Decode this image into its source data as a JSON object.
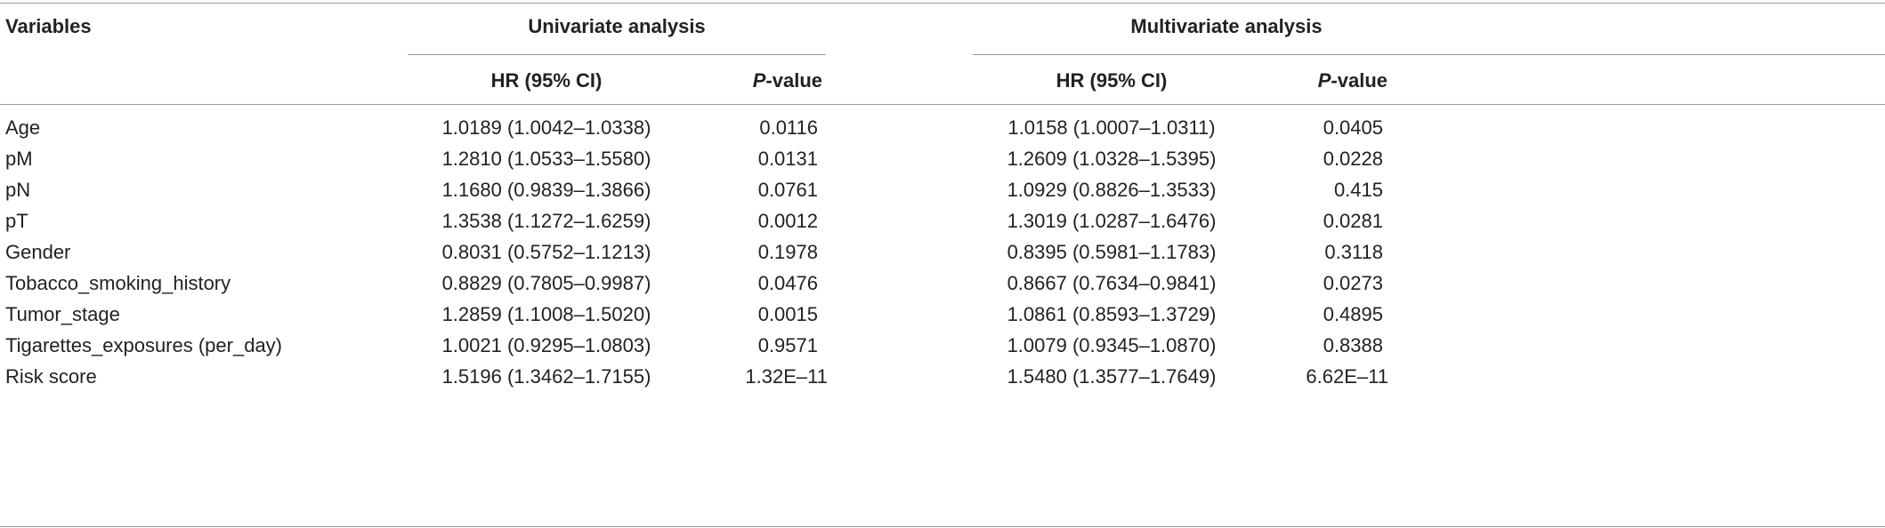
{
  "table": {
    "header": {
      "variables": "Variables",
      "univariate": "Univariate analysis",
      "multivariate": "Multivariate analysis",
      "hr": "HR (95% CI)",
      "p_italic": "P",
      "p_suffix": "-value"
    },
    "rows": [
      {
        "variable": "Age",
        "uni_hr": "1.0189 (1.0042–1.0338)",
        "uni_p": "0.0116",
        "multi_hr": "1.0158 (1.0007–1.0311)",
        "multi_p": "0.0405"
      },
      {
        "variable": "pM",
        "uni_hr": "1.2810 (1.0533–1.5580)",
        "uni_p": "0.0131",
        "multi_hr": "1.2609 (1.0328–1.5395)",
        "multi_p": "0.0228"
      },
      {
        "variable": "pN",
        "uni_hr": "1.1680 (0.9839–1.3866)",
        "uni_p": "0.0761",
        "multi_hr": "1.0929 (0.8826–1.3533)",
        "multi_p": "0.415"
      },
      {
        "variable": "pT",
        "uni_hr": "1.3538 (1.1272–1.6259)",
        "uni_p": "0.0012",
        "multi_hr": "1.3019 (1.0287–1.6476)",
        "multi_p": "0.0281"
      },
      {
        "variable": "Gender",
        "uni_hr": "0.8031 (0.5752–1.1213)",
        "uni_p": "0.1978",
        "multi_hr": "0.8395 (0.5981–1.1783)",
        "multi_p": "0.3118"
      },
      {
        "variable": "Tobacco_smoking_history",
        "uni_hr": "0.8829 (0.7805–0.9987)",
        "uni_p": "0.0476",
        "multi_hr": "0.8667 (0.7634–0.9841)",
        "multi_p": "0.0273"
      },
      {
        "variable": "Tumor_stage",
        "uni_hr": "1.2859 (1.1008–1.5020)",
        "uni_p": "0.0015",
        "multi_hr": "1.0861 (0.8593–1.3729)",
        "multi_p": "0.4895"
      },
      {
        "variable": "Tigarettes_exposures (per_day)",
        "uni_hr": "1.0021 (0.9295–1.0803)",
        "uni_p": "0.9571",
        "multi_hr": "1.0079 (0.9345–1.0870)",
        "multi_p": "0.8388"
      },
      {
        "variable": "Risk score",
        "uni_hr": "1.5196 (1.3462–1.7155)",
        "uni_p": "1.32E–11",
        "multi_hr": "1.5480 (1.3577–1.7649)",
        "multi_p": "6.62E–11"
      }
    ]
  }
}
